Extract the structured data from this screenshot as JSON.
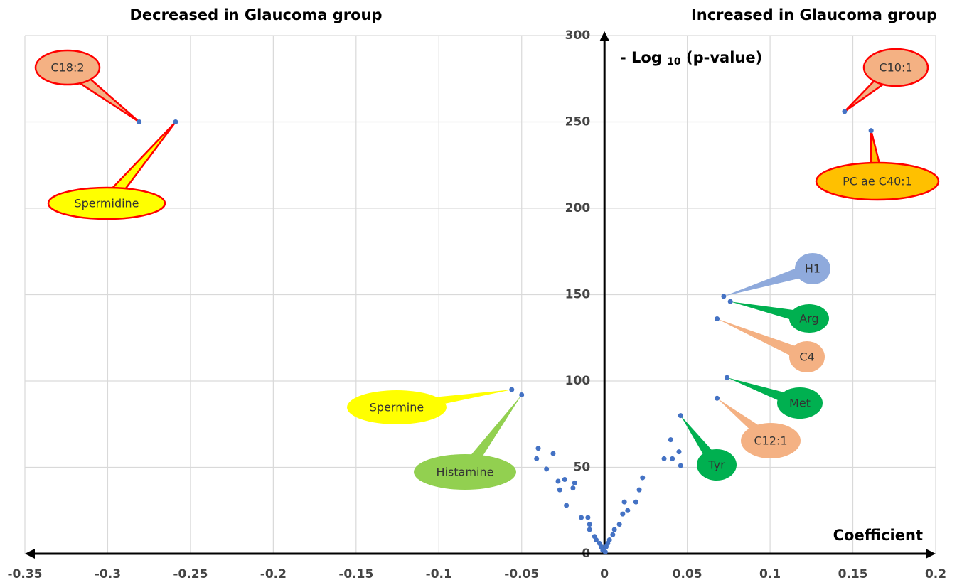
{
  "chart_data": {
    "type": "scatter",
    "title_left": "Decreased in Glaucoma group",
    "title_right": "Increased in Glaucoma group",
    "xlabel": "Coefficient",
    "ylabel": {
      "text": "- Log",
      "sub": "10",
      "rest": "(p-value)"
    },
    "xlim": [
      -0.35,
      0.2
    ],
    "ylim": [
      0,
      300
    ],
    "xticks": [
      -0.35,
      -0.3,
      -0.25,
      -0.2,
      -0.15,
      -0.1,
      -0.05,
      0,
      0.05,
      0.1,
      0.15,
      0.2
    ],
    "yticks": [
      0,
      50,
      100,
      150,
      200,
      250,
      300
    ],
    "grid": true,
    "color": "#4472c4",
    "x": [
      -0.04,
      -0.041,
      -0.031,
      -0.035,
      -0.028,
      -0.024,
      -0.018,
      -0.019,
      -0.027,
      -0.023,
      -0.014,
      -0.01,
      -0.009,
      -0.009,
      -0.006,
      -0.005,
      -0.003,
      -0.002,
      -0.001,
      0.04,
      0.036,
      0.041,
      0.045,
      0.046,
      0.023,
      0.021,
      0.019,
      0.012,
      0.014,
      0.011,
      0.009,
      0.006,
      0.005,
      0.003,
      0.002,
      0.001,
      0.0005
    ],
    "y": [
      61,
      55,
      58,
      49,
      42,
      43,
      41,
      38,
      37,
      28,
      21,
      21,
      17,
      14,
      10,
      8,
      6,
      4,
      2,
      66,
      55,
      55,
      59,
      51,
      44,
      37,
      30,
      30,
      25,
      23,
      17,
      14,
      11,
      8,
      6,
      4,
      1
    ],
    "annotations": [
      {
        "text": "C18:2",
        "x": -0.281,
        "y": 250,
        "fill": "#f4b183",
        "stroke": "#ff0000"
      },
      {
        "text": "Spermidine",
        "x": -0.259,
        "y": 250,
        "fill": "#ffff00",
        "stroke": "#ff0000"
      },
      {
        "text": "C10:1",
        "x": 0.145,
        "y": 256,
        "fill": "#f4b183",
        "stroke": "#ff0000"
      },
      {
        "text": "PC ae C40:1",
        "x": 0.161,
        "y": 245,
        "fill": "#ffc000",
        "stroke": "#ff0000"
      },
      {
        "text": "H1",
        "x": 0.072,
        "y": 149,
        "fill": "#8faadc",
        "stroke": "none"
      },
      {
        "text": "Arg",
        "x": 0.076,
        "y": 146,
        "fill": "#00b050",
        "stroke": "none"
      },
      {
        "text": "C4",
        "x": 0.068,
        "y": 136,
        "fill": "#f4b183",
        "stroke": "none"
      },
      {
        "text": "Met",
        "x": 0.074,
        "y": 102,
        "fill": "#00b050",
        "stroke": "none"
      },
      {
        "text": "C12:1",
        "x": 0.068,
        "y": 90,
        "fill": "#f4b183",
        "stroke": "none"
      },
      {
        "text": "Tyr",
        "x": 0.046,
        "y": 80,
        "fill": "#00b050",
        "stroke": "none"
      },
      {
        "text": "Spermine",
        "x": -0.056,
        "y": 95,
        "fill": "#ffff00",
        "stroke": "none"
      },
      {
        "text": "Histamine",
        "x": -0.05,
        "y": 92,
        "fill": "#92d050",
        "stroke": "none"
      }
    ]
  }
}
